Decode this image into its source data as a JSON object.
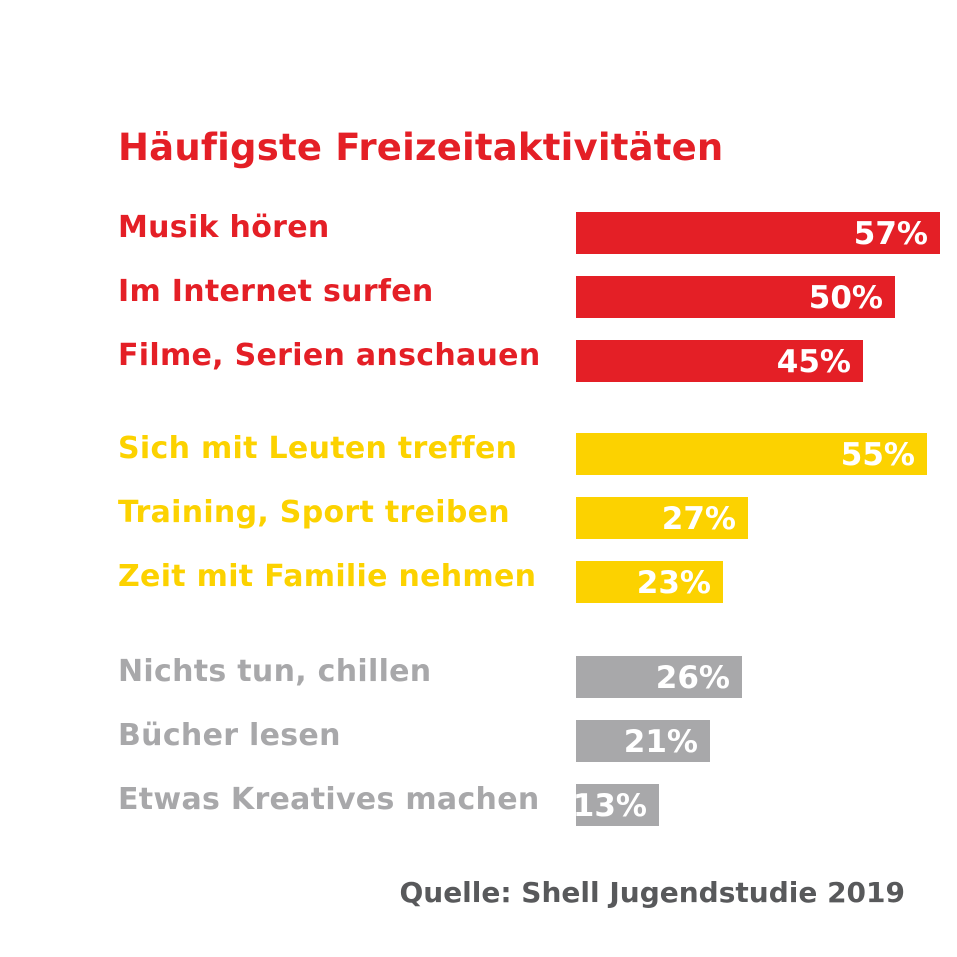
{
  "chart_data": {
    "type": "bar",
    "orientation": "horizontal",
    "title": "Häufigste Freizeitaktivitäten",
    "source": "Quelle: Shell Jugendstudie 2019",
    "unit": "%",
    "groups": [
      {
        "color": "#e41f26",
        "items": [
          {
            "label": "Musik hören",
            "value": 57,
            "value_label": "57%"
          },
          {
            "label": "Im Internet surfen",
            "value": 50,
            "value_label": "50%"
          },
          {
            "label": "Filme, Serien anschauen",
            "value": 45,
            "value_label": "45%"
          }
        ]
      },
      {
        "color": "#fcd200",
        "items": [
          {
            "label": "Sich mit Leuten treffen",
            "value": 55,
            "value_label": "55%"
          },
          {
            "label": "Training, Sport treiben",
            "value": 27,
            "value_label": "27%"
          },
          {
            "label": "Zeit mit Familie nehmen",
            "value": 23,
            "value_label": "23%"
          }
        ]
      },
      {
        "color": "#a8a8aa",
        "items": [
          {
            "label": "Nichts tun, chillen",
            "value": 26,
            "value_label": "26%"
          },
          {
            "label": "Bücher lesen",
            "value": 21,
            "value_label": "21%"
          },
          {
            "label": "Etwas Kreatives machen",
            "value": 13,
            "value_label": "13%"
          }
        ]
      }
    ],
    "colors": {
      "title": "#e41f26",
      "source": "#58595b",
      "value_text": "#ffffff"
    }
  }
}
